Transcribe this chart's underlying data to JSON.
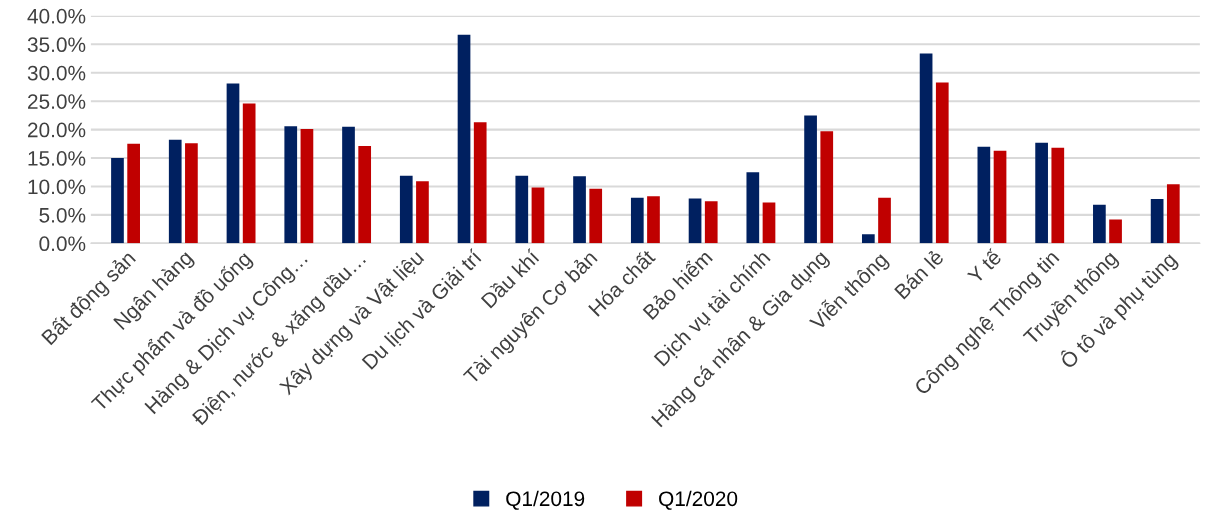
{
  "chart_data": {
    "type": "bar",
    "categories": [
      "Bất động sản",
      "Ngân hàng",
      "Thực phẩm và đồ uống",
      "Hàng & Dịch vụ Công…",
      "Điện, nước & xăng dầu…",
      "Xây dựng và Vật liệu",
      "Du lịch và Giải trí",
      "Dầu khí",
      "Tài nguyên Cơ bản",
      "Hóa chất",
      "Bảo hiểm",
      "Dịch vụ tài chính",
      "Hàng cá nhân & Gia dụng",
      "Viễn thông",
      "Bán lẻ",
      "Y tế",
      "Công nghệ Thông tin",
      "Truyền thông",
      "Ô tô và phụ tùng"
    ],
    "series": [
      {
        "name": "Q1/2019",
        "color": "#002060",
        "values": [
          15.0,
          18.2,
          28.1,
          20.6,
          20.5,
          11.9,
          36.7,
          11.9,
          11.8,
          8.0,
          7.9,
          12.5,
          22.5,
          1.6,
          33.4,
          17.0,
          17.7,
          6.8,
          7.8
        ]
      },
      {
        "name": "Q1/2020",
        "color": "#c00000",
        "values": [
          17.5,
          17.6,
          24.6,
          20.1,
          17.1,
          10.9,
          21.3,
          9.8,
          9.6,
          8.3,
          7.4,
          7.2,
          19.7,
          8.0,
          28.3,
          16.3,
          16.8,
          4.2,
          10.4
        ]
      }
    ],
    "ylim": [
      0,
      40
    ],
    "yticks": [
      {
        "value": 0,
        "label": "0.0%"
      },
      {
        "value": 5,
        "label": "5.0%"
      },
      {
        "value": 10,
        "label": "10.0%"
      },
      {
        "value": 15,
        "label": "15.0%"
      },
      {
        "value": 20,
        "label": "20.0%"
      },
      {
        "value": 25,
        "label": "25.0%"
      },
      {
        "value": 30,
        "label": "30.0%"
      },
      {
        "value": 35,
        "label": "35.0%"
      },
      {
        "value": 40,
        "label": "40.0%"
      }
    ],
    "grid": "y",
    "legend": "bottom"
  }
}
